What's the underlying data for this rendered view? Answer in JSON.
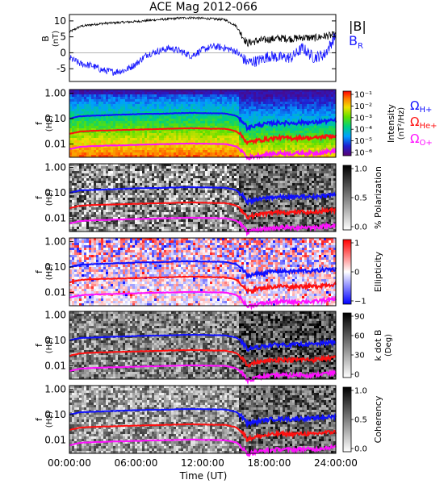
{
  "title": "ACE Mag 2012-066",
  "colors": {
    "b_total": "#000000",
    "b_r": "#1a1aff",
    "h_plus": "#1010ff",
    "he_plus": "#ff1010",
    "o_plus": "#ff10ff"
  },
  "chart_data": [
    {
      "type": "line",
      "panel": "magnetic_field",
      "ylabel": "B",
      "yunit": "(nT)",
      "ylim": [
        -9,
        12
      ],
      "yticks": [
        -5,
        0,
        5,
        10
      ],
      "legend": {
        "placement": "right",
        "entries": [
          "|B|",
          "B_R"
        ]
      },
      "x_hours": [
        0,
        1,
        2,
        3,
        4,
        5,
        6,
        7,
        8,
        9,
        10,
        11,
        12,
        13,
        14,
        15,
        16,
        17,
        18,
        19,
        20,
        21,
        22,
        23,
        24
      ],
      "series": [
        {
          "name": "|B|",
          "color": "#000000",
          "values": [
            6.5,
            8.3,
            8.8,
            9.2,
            9.4,
            9.6,
            9.8,
            10.1,
            10.4,
            10.6,
            10.9,
            11.0,
            10.8,
            10.6,
            10.4,
            8.5,
            3.0,
            3.8,
            4.2,
            4.6,
            4.4,
            4.8,
            4.6,
            5.2,
            5.6
          ]
        },
        {
          "name": "B_R",
          "color": "#1a1aff",
          "values": [
            -1.5,
            -3.5,
            -4.0,
            -5.5,
            -6.0,
            -5.5,
            -3.5,
            -0.5,
            0.5,
            1.5,
            0.5,
            -1.0,
            1.0,
            2.0,
            1.5,
            0.5,
            -3.0,
            -2.5,
            -1.0,
            -1.5,
            -1.5,
            1.5,
            -1.5,
            -0.5,
            5.5
          ]
        }
      ]
    },
    {
      "type": "heatmap",
      "panel": "power_spectrum",
      "ylabel": "f",
      "yunit": "(Hz)",
      "yscale": "log",
      "ylim": [
        0.003,
        1.0
      ],
      "yticklabels": [
        "1.00",
        "0.10",
        "0.01"
      ],
      "colorbar": {
        "label": "Intensity",
        "unit": "(nT²/Hz)",
        "scale": "log",
        "ticks": [
          "10⁻¹",
          "10⁻²",
          "10⁻³",
          "10⁻⁴",
          "10⁻⁵",
          "10⁻⁶"
        ],
        "colormap": "rainbow"
      },
      "ion_legend": [
        "Ω_H+",
        "Ω_He+",
        "Ω_O+"
      ]
    },
    {
      "type": "heatmap",
      "panel": "polarization",
      "ylabel": "f",
      "yunit": "(Hz)",
      "yscale": "log",
      "yticklabels": [
        "1.00",
        "0.10",
        "0.01"
      ],
      "colorbar": {
        "label": "% Polarization",
        "ticks": [
          "1.0",
          "0.5",
          "0.0"
        ],
        "range": [
          0,
          1
        ],
        "colormap": "gray"
      }
    },
    {
      "type": "heatmap",
      "panel": "ellipticity",
      "ylabel": "f",
      "yunit": "(Hz)",
      "yscale": "log",
      "yticklabels": [
        "1.00",
        "0.10",
        "0.01"
      ],
      "colorbar": {
        "label": "Ellipticity",
        "ticks": [
          "1",
          "0",
          "−1"
        ],
        "range": [
          -1,
          1
        ],
        "colormap": "blue-white-red"
      }
    },
    {
      "type": "heatmap",
      "panel": "wave_normal_angle",
      "ylabel": "f",
      "yunit": "(Hz)",
      "yscale": "log",
      "yticklabels": [
        "1.00",
        "0.10",
        "0.01"
      ],
      "colorbar": {
        "label": "k dot B",
        "unit": "(Deg)",
        "ticks": [
          "90",
          "60",
          "30",
          "0"
        ],
        "range": [
          0,
          90
        ],
        "colormap": "gray"
      }
    },
    {
      "type": "heatmap",
      "panel": "coherency",
      "ylabel": "f",
      "yunit": "(Hz)",
      "yscale": "log",
      "yticklabels": [
        "1.00",
        "0.10",
        "0.01"
      ],
      "colorbar": {
        "label": "Coherency",
        "ticks": [
          "1.0",
          "0.5",
          "0.0"
        ],
        "range": [
          0,
          1
        ],
        "colormap": "gray"
      }
    },
    {
      "type": "line",
      "panel": "gyrofrequencies_overlay",
      "x_hours": [
        0,
        1,
        2,
        3,
        4,
        5,
        6,
        7,
        8,
        9,
        10,
        11,
        12,
        13,
        14,
        15,
        16,
        17,
        18,
        19,
        20,
        21,
        22,
        23,
        24
      ],
      "series": [
        {
          "name": "Ω_H+",
          "color": "#1010ff",
          "values": [
            0.1,
            0.125,
            0.13,
            0.135,
            0.14,
            0.145,
            0.15,
            0.155,
            0.155,
            0.16,
            0.165,
            0.168,
            0.165,
            0.162,
            0.16,
            0.13,
            0.045,
            0.055,
            0.065,
            0.07,
            0.067,
            0.072,
            0.07,
            0.08,
            0.085
          ]
        },
        {
          "name": "Ω_He+",
          "color": "#ff1010",
          "values": [
            0.025,
            0.031,
            0.033,
            0.034,
            0.035,
            0.036,
            0.037,
            0.038,
            0.039,
            0.04,
            0.041,
            0.042,
            0.041,
            0.04,
            0.04,
            0.032,
            0.011,
            0.014,
            0.016,
            0.018,
            0.017,
            0.018,
            0.017,
            0.02,
            0.021
          ]
        },
        {
          "name": "Ω_O+",
          "color": "#ff10ff",
          "values": [
            0.0062,
            0.0078,
            0.0082,
            0.0085,
            0.0088,
            0.009,
            0.0093,
            0.0096,
            0.0098,
            0.01,
            0.0103,
            0.0105,
            0.0103,
            0.0101,
            0.01,
            0.0081,
            0.0028,
            0.0035,
            0.004,
            0.0044,
            0.0042,
            0.0045,
            0.0043,
            0.005,
            0.0053
          ]
        }
      ]
    }
  ],
  "xaxis": {
    "ticklabels": [
      "00:00:00",
      "06:00:00",
      "12:00:00",
      "18:00:00",
      "24:00:00"
    ],
    "tick_hours": [
      0,
      6,
      12,
      18,
      24
    ],
    "label": "Time (UT)",
    "range_hours": [
      0,
      24
    ]
  }
}
